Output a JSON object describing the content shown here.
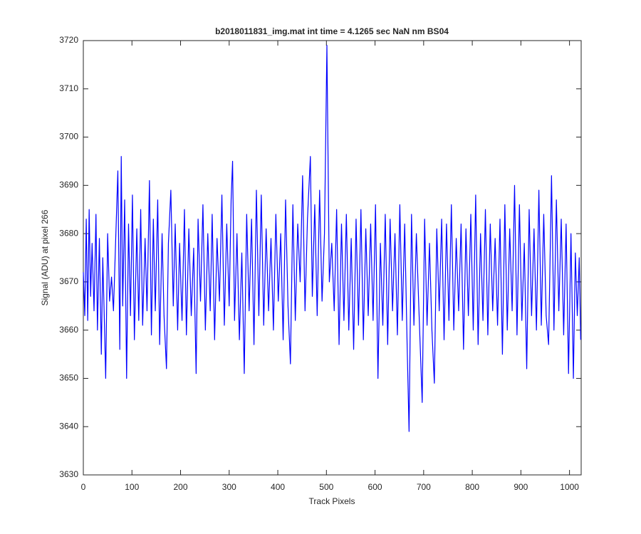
{
  "chart_data": {
    "type": "line",
    "title": "b2018011831_img.mat int time = 4.1265 sec  NaN nm BS04",
    "x_label": "Track Pixels",
    "y_label": "Signal (ADU) at pixel 266",
    "x": [
      0,
      3,
      6,
      9,
      12,
      15,
      18,
      22,
      26,
      29,
      33,
      37,
      40,
      43,
      46,
      50,
      54,
      58,
      62,
      66,
      71,
      75,
      78,
      81,
      85,
      89,
      93,
      97,
      101,
      105,
      110,
      114,
      118,
      122,
      127,
      131,
      136,
      140,
      144,
      148,
      153,
      157,
      162,
      166,
      171,
      175,
      180,
      185,
      189,
      194,
      198,
      203,
      208,
      212,
      217,
      222,
      227,
      232,
      236,
      241,
      246,
      251,
      256,
      261,
      265,
      270,
      275,
      280,
      285,
      290,
      295,
      300,
      304,
      307,
      311,
      316,
      321,
      326,
      331,
      336,
      341,
      346,
      351,
      356,
      361,
      366,
      371,
      376,
      381,
      386,
      391,
      396,
      401,
      406,
      411,
      416,
      421,
      426,
      431,
      436,
      441,
      446,
      451,
      456,
      461,
      467,
      471,
      476,
      481,
      486,
      491,
      496,
      501,
      506,
      511,
      516,
      521,
      526,
      531,
      536,
      541,
      546,
      551,
      556,
      561,
      566,
      571,
      576,
      581,
      586,
      591,
      596,
      601,
      606,
      611,
      616,
      621,
      626,
      631,
      636,
      641,
      646,
      651,
      656,
      661,
      666,
      670,
      675,
      680,
      685,
      690,
      697,
      702,
      707,
      712,
      717,
      722,
      727,
      732,
      737,
      742,
      747,
      752,
      757,
      762,
      767,
      772,
      777,
      782,
      787,
      792,
      797,
      802,
      807,
      812,
      817,
      822,
      827,
      832,
      837,
      842,
      847,
      852,
      857,
      862,
      867,
      872,
      877,
      882,
      887,
      892,
      897,
      902,
      907,
      912,
      917,
      922,
      927,
      932,
      937,
      942,
      947,
      952,
      957,
      963,
      968,
      973,
      978,
      983,
      988,
      993,
      998,
      1003,
      1008,
      1012,
      1016,
      1020,
      1023
    ],
    "series": [
      {
        "color": "#0000ff",
        "values": [
          3672,
          3663,
          3683,
          3662,
          3685,
          3667,
          3678,
          3664,
          3684,
          3660,
          3679,
          3655,
          3675,
          3663,
          3650,
          3680,
          3666,
          3671,
          3664,
          3677,
          3693,
          3656,
          3696,
          3665,
          3687,
          3650,
          3682,
          3663,
          3688,
          3658,
          3681,
          3662,
          3685,
          3661,
          3679,
          3664,
          3691,
          3659,
          3683,
          3664,
          3687,
          3657,
          3680,
          3663,
          3652,
          3678,
          3689,
          3665,
          3682,
          3660,
          3678,
          3662,
          3685,
          3659,
          3681,
          3663,
          3677,
          3651,
          3683,
          3666,
          3686,
          3660,
          3680,
          3664,
          3684,
          3658,
          3679,
          3666,
          3688,
          3661,
          3682,
          3665,
          3687,
          3695,
          3662,
          3680,
          3658,
          3676,
          3651,
          3684,
          3664,
          3683,
          3657,
          3689,
          3663,
          3688,
          3661,
          3681,
          3664,
          3679,
          3660,
          3684,
          3666,
          3680,
          3658,
          3687,
          3665,
          3653,
          3686,
          3662,
          3682,
          3670,
          3692,
          3664,
          3683,
          3696,
          3667,
          3686,
          3663,
          3689,
          3666,
          3680,
          3719,
          3670,
          3678,
          3664,
          3685,
          3657,
          3682,
          3662,
          3684,
          3660,
          3679,
          3656,
          3683,
          3661,
          3685,
          3658,
          3681,
          3663,
          3682,
          3662,
          3686,
          3650,
          3678,
          3661,
          3684,
          3657,
          3683,
          3664,
          3680,
          3659,
          3686,
          3662,
          3682,
          3657,
          3639,
          3684,
          3661,
          3680,
          3665,
          3645,
          3683,
          3661,
          3678,
          3660,
          3649,
          3681,
          3664,
          3683,
          3658,
          3682,
          3662,
          3686,
          3660,
          3679,
          3664,
          3682,
          3656,
          3681,
          3663,
          3684,
          3660,
          3688,
          3657,
          3680,
          3662,
          3685,
          3659,
          3682,
          3664,
          3679,
          3661,
          3683,
          3655,
          3686,
          3660,
          3681,
          3664,
          3690,
          3659,
          3686,
          3662,
          3678,
          3652,
          3685,
          3663,
          3681,
          3660,
          3689,
          3661,
          3684,
          3663,
          3657,
          3692,
          3660,
          3687,
          3664,
          3683,
          3659,
          3682,
          3651,
          3680,
          3650,
          3676,
          3663,
          3675,
          3658
        ]
      }
    ],
    "xlim": [
      0,
      1024
    ],
    "ylim": [
      3630,
      3720
    ],
    "xticks": [
      0,
      100,
      200,
      300,
      400,
      500,
      600,
      700,
      800,
      900,
      1000
    ],
    "yticks": [
      3630,
      3640,
      3650,
      3660,
      3670,
      3680,
      3690,
      3700,
      3710,
      3720
    ],
    "grid": false
  }
}
